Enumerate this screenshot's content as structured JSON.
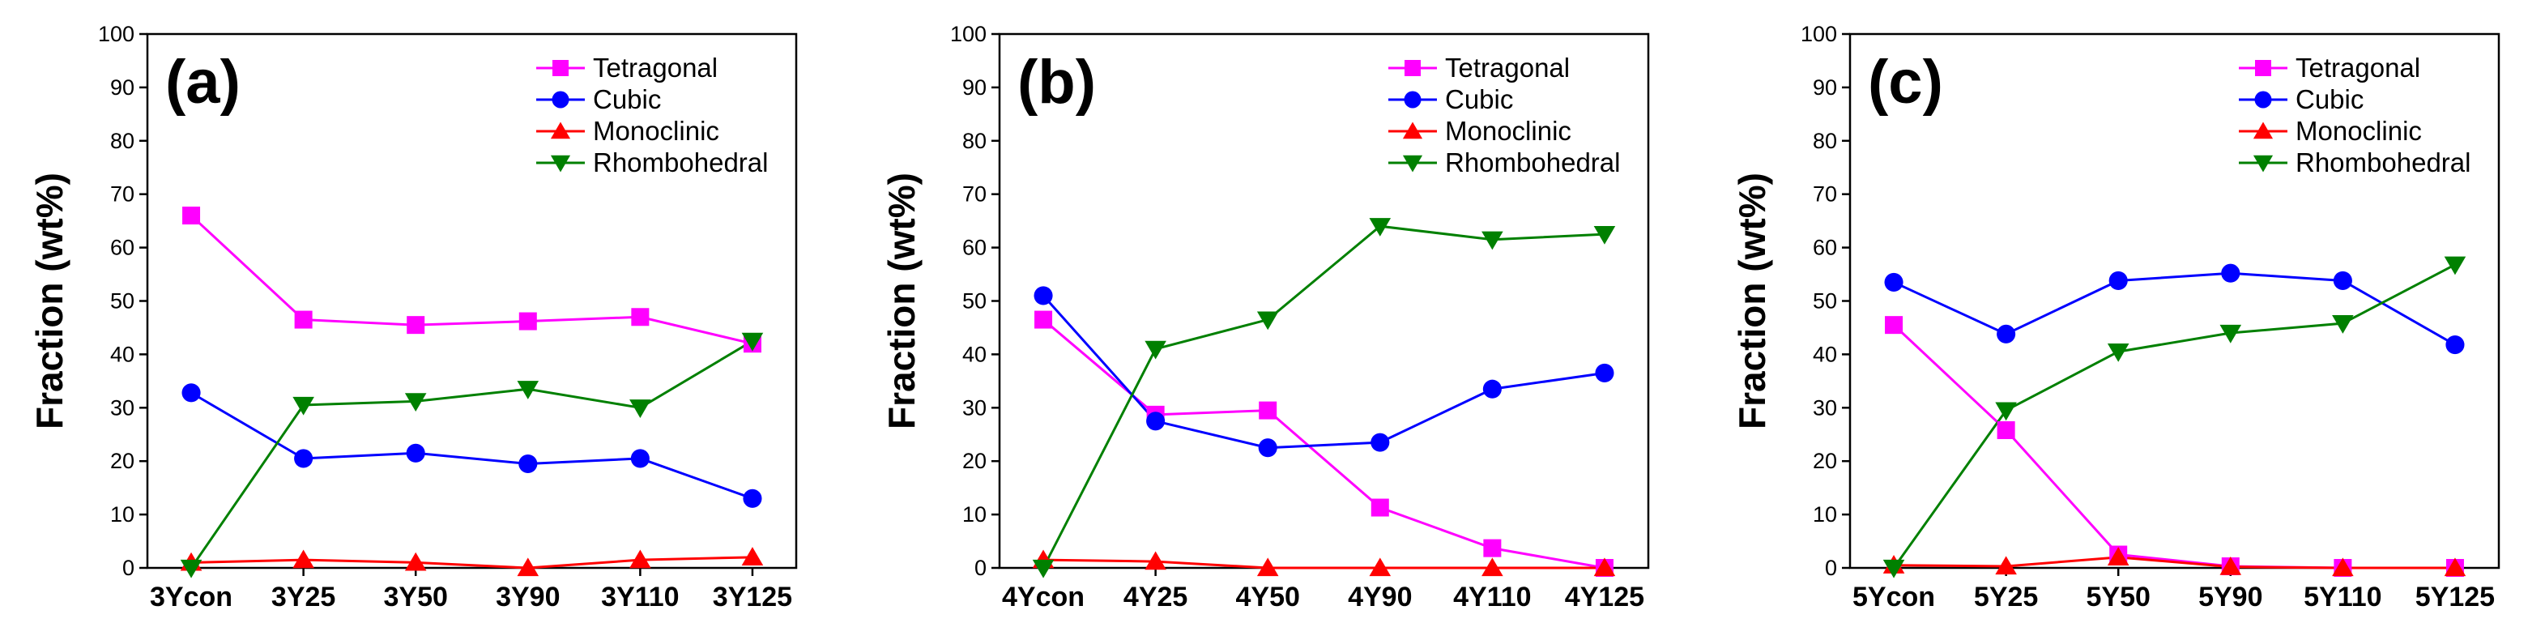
{
  "chart_data": [
    {
      "type": "line",
      "panel_label": "(a)",
      "categories": [
        "3Ycon",
        "3Y25",
        "3Y50",
        "3Y90",
        "3Y110",
        "3Y125"
      ],
      "ylabel": "Fraction (wt%)",
      "xlabel": "",
      "ylim": [
        0,
        100
      ],
      "yticks": [
        "0",
        "10",
        "20",
        "30",
        "40",
        "50",
        "60",
        "70",
        "80",
        "90",
        "100"
      ],
      "legend_position": "top-right",
      "series": [
        {
          "name": "Tetragonal",
          "color": "#ff00ff",
          "marker": "square",
          "values": [
            66,
            46.5,
            45.5,
            46.2,
            47,
            42
          ]
        },
        {
          "name": "Cubic",
          "color": "#0000ff",
          "marker": "circle",
          "values": [
            32.8,
            20.5,
            21.5,
            19.5,
            20.5,
            13
          ]
        },
        {
          "name": "Monoclinic",
          "color": "#ff0000",
          "marker": "triangle-up",
          "values": [
            1,
            1.5,
            1,
            0,
            1.5,
            2
          ]
        },
        {
          "name": "Rhombohedral",
          "color": "#008000",
          "marker": "triangle-down",
          "values": [
            0,
            30.5,
            31.2,
            33.5,
            30,
            42.5
          ]
        }
      ]
    },
    {
      "type": "line",
      "panel_label": "(b)",
      "categories": [
        "4Ycon",
        "4Y25",
        "4Y50",
        "4Y90",
        "4Y110",
        "4Y125"
      ],
      "ylabel": "Fraction (wt%)",
      "xlabel": "",
      "ylim": [
        0,
        100
      ],
      "yticks": [
        "0",
        "10",
        "20",
        "30",
        "40",
        "50",
        "60",
        "70",
        "80",
        "90",
        "100"
      ],
      "legend_position": "top-right",
      "series": [
        {
          "name": "Tetragonal",
          "color": "#ff00ff",
          "marker": "square",
          "values": [
            46.5,
            28.7,
            29.5,
            11.3,
            3.7,
            0
          ]
        },
        {
          "name": "Cubic",
          "color": "#0000ff",
          "marker": "circle",
          "values": [
            51,
            27.5,
            22.5,
            23.5,
            33.5,
            36.5
          ]
        },
        {
          "name": "Monoclinic",
          "color": "#ff0000",
          "marker": "triangle-up",
          "values": [
            1.5,
            1.2,
            0,
            0,
            0,
            0
          ]
        },
        {
          "name": "Rhombohedral",
          "color": "#008000",
          "marker": "triangle-down",
          "values": [
            0,
            41,
            46.5,
            64,
            61.5,
            62.5
          ]
        }
      ]
    },
    {
      "type": "line",
      "panel_label": "(c)",
      "categories": [
        "5Ycon",
        "5Y25",
        "5Y50",
        "5Y90",
        "5Y110",
        "5Y125"
      ],
      "ylabel": "Fraction (wt%)",
      "xlabel": "",
      "ylim": [
        0,
        100
      ],
      "yticks": [
        "0",
        "10",
        "20",
        "30",
        "40",
        "50",
        "60",
        "70",
        "80",
        "90",
        "100"
      ],
      "legend_position": "top-right",
      "series": [
        {
          "name": "Tetragonal",
          "color": "#ff00ff",
          "marker": "square",
          "values": [
            45.5,
            25.8,
            2.5,
            0.3,
            0,
            0
          ]
        },
        {
          "name": "Cubic",
          "color": "#0000ff",
          "marker": "circle",
          "values": [
            53.5,
            43.8,
            53.8,
            55.2,
            53.8,
            41.8
          ]
        },
        {
          "name": "Monoclinic",
          "color": "#ff0000",
          "marker": "triangle-up",
          "values": [
            0.5,
            0.3,
            2,
            0.2,
            0,
            0
          ]
        },
        {
          "name": "Rhombohedral",
          "color": "#008000",
          "marker": "triangle-down",
          "values": [
            0,
            29.5,
            40.5,
            44,
            45.8,
            56.8
          ]
        }
      ]
    }
  ]
}
